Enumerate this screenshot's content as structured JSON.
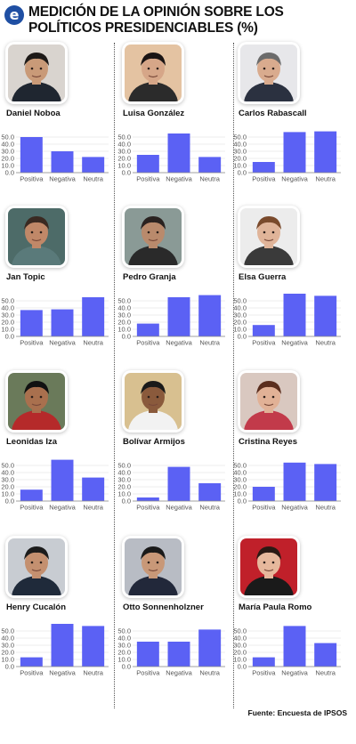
{
  "header": {
    "title_line1": "MEDICIÓN DE LA OPINIÓN SOBRE LOS",
    "title_line2": "POLÍTICOS PRESIDENCIABLES (%)",
    "logo_letter": "e"
  },
  "colors": {
    "bar": "#5b61f4",
    "grid": "#d9d9d9",
    "axis": "#888888",
    "logo": "#1f4fa3"
  },
  "chart_data": [
    {
      "type": "bar",
      "name": "Daniel Noboa",
      "categories": [
        "Positiva",
        "Negativa",
        "Neutra"
      ],
      "values": [
        50,
        30,
        22
      ],
      "ylim": [
        0,
        60
      ],
      "yticks": [
        "0.0",
        "10.0",
        "20.0",
        "30.0",
        "40.0",
        "50.0"
      ]
    },
    {
      "type": "bar",
      "name": "Luisa González",
      "categories": [
        "Positiva",
        "Negativa",
        "Neutra"
      ],
      "values": [
        25,
        55,
        22
      ],
      "ylim": [
        0,
        60
      ],
      "yticks": [
        "0.0",
        "10.0",
        "20.0",
        "30.0",
        "40.0",
        "50.0"
      ]
    },
    {
      "type": "bar",
      "name": "Carlos Rabascall",
      "categories": [
        "Positiva",
        "Negativa",
        "Neutra"
      ],
      "values": [
        15,
        57,
        58
      ],
      "ylim": [
        0,
        60
      ],
      "yticks": [
        "0.0",
        "10.0",
        "20.0",
        "30.0",
        "40.0",
        "50.0"
      ]
    },
    {
      "type": "bar",
      "name": "Jan Topic",
      "categories": [
        "Positiva",
        "Negativa",
        "Neutra"
      ],
      "values": [
        37,
        38,
        55
      ],
      "ylim": [
        0,
        60
      ],
      "yticks": [
        "0.0",
        "10.0",
        "20.0",
        "30.0",
        "40.0",
        "50.0"
      ]
    },
    {
      "type": "bar",
      "name": "Pedro Granja",
      "categories": [
        "Positiva",
        "Negativa",
        "Neutra"
      ],
      "values": [
        18,
        55,
        58
      ],
      "ylim": [
        0,
        60
      ],
      "yticks": [
        "0.0",
        "10.0",
        "20.0",
        "30.0",
        "40.0",
        "50.0"
      ]
    },
    {
      "type": "bar",
      "name": "Elsa Guerra",
      "categories": [
        "Positiva",
        "Negativa",
        "Neutra"
      ],
      "values": [
        16,
        60,
        57
      ],
      "ylim": [
        0,
        60
      ],
      "yticks": [
        "0.0",
        "10.0",
        "20.0",
        "30.0",
        "40.0",
        "50.0"
      ]
    },
    {
      "type": "bar",
      "name": "Leonidas Iza",
      "categories": [
        "Positiva",
        "Negativa",
        "Neutra"
      ],
      "values": [
        16,
        58,
        33
      ],
      "ylim": [
        0,
        60
      ],
      "yticks": [
        "0.0",
        "10.0",
        "20.0",
        "30.0",
        "40.0",
        "50.0"
      ]
    },
    {
      "type": "bar",
      "name": "Bolívar Armijos",
      "categories": [
        "Positiva",
        "Negativa",
        "Neutra"
      ],
      "values": [
        5,
        48,
        25
      ],
      "ylim": [
        0,
        60
      ],
      "yticks": [
        "0.0",
        "10.0",
        "20.0",
        "30.0",
        "40.0",
        "50.0"
      ]
    },
    {
      "type": "bar",
      "name": "Cristina Reyes",
      "categories": [
        "Positiva",
        "Negativa",
        "Neutra"
      ],
      "values": [
        20,
        54,
        52
      ],
      "ylim": [
        0,
        60
      ],
      "yticks": [
        "0.0",
        "10.0",
        "20.0",
        "30.0",
        "40.0",
        "50.0"
      ]
    },
    {
      "type": "bar",
      "name": "Henry Cucalón",
      "categories": [
        "Positiva",
        "Negativa",
        "Neutra"
      ],
      "values": [
        13,
        60,
        57
      ],
      "ylim": [
        0,
        60
      ],
      "yticks": [
        "0.0",
        "10.0",
        "20.0",
        "30.0",
        "40.0",
        "50.0"
      ]
    },
    {
      "type": "bar",
      "name": "Otto Sonnenholzner",
      "categories": [
        "Positiva",
        "Negativa",
        "Neutra"
      ],
      "values": [
        35,
        35,
        52
      ],
      "ylim": [
        0,
        60
      ],
      "yticks": [
        "0.0",
        "10.0",
        "20.0",
        "30.0",
        "40.0",
        "50.0"
      ]
    },
    {
      "type": "bar",
      "name": "María Paula Romo",
      "categories": [
        "Positiva",
        "Negativa",
        "Neutra"
      ],
      "values": [
        13,
        57,
        33
      ],
      "ylim": [
        0,
        60
      ],
      "yticks": [
        "0.0",
        "10.0",
        "20.0",
        "30.0",
        "40.0",
        "50.0"
      ]
    }
  ],
  "photos": [
    {
      "skin": "#c99a78",
      "hair": "#1e1a18",
      "bg": "#d9d4cf",
      "shirt": "#1f2630"
    },
    {
      "skin": "#d6a688",
      "hair": "#1a1414",
      "bg": "#e4c3a2",
      "shirt": "#2b2b2b"
    },
    {
      "skin": "#d9ab8e",
      "hair": "#6b6b6b",
      "bg": "#e7e7ea",
      "shirt": "#2b3140"
    },
    {
      "skin": "#c08868",
      "hair": "#3a2a22",
      "bg": "#4d6b68",
      "shirt": "#5a7a7a"
    },
    {
      "skin": "#b98a6c",
      "hair": "#2a2220",
      "bg": "#8a9a96",
      "shirt": "#2a2a2a"
    },
    {
      "skin": "#e0b499",
      "hair": "#7a4a2c",
      "bg": "#ececec",
      "shirt": "#3a3a3a"
    },
    {
      "skin": "#a9704e",
      "hair": "#111111",
      "bg": "#6a7a5a",
      "shirt": "#b52a2a"
    },
    {
      "skin": "#8a5a3c",
      "hair": "#1a1a1a",
      "bg": "#d8c090",
      "shirt": "#f2f2f2"
    },
    {
      "skin": "#e1b196",
      "hair": "#5a2e1e",
      "bg": "#d9c8c0",
      "shirt": "#c23a4a"
    },
    {
      "skin": "#c49070",
      "hair": "#1c1c1c",
      "bg": "#c8ccd2",
      "shirt": "#1f2a3a"
    },
    {
      "skin": "#c89878",
      "hair": "#1a1a1a",
      "bg": "#b8bcc4",
      "shirt": "#22283a"
    },
    {
      "skin": "#e6b89c",
      "hair": "#2a1a14",
      "bg": "#c0202a",
      "shirt": "#1a1a1a"
    }
  ],
  "source": "Fuente: Encuesta de IPSOS"
}
